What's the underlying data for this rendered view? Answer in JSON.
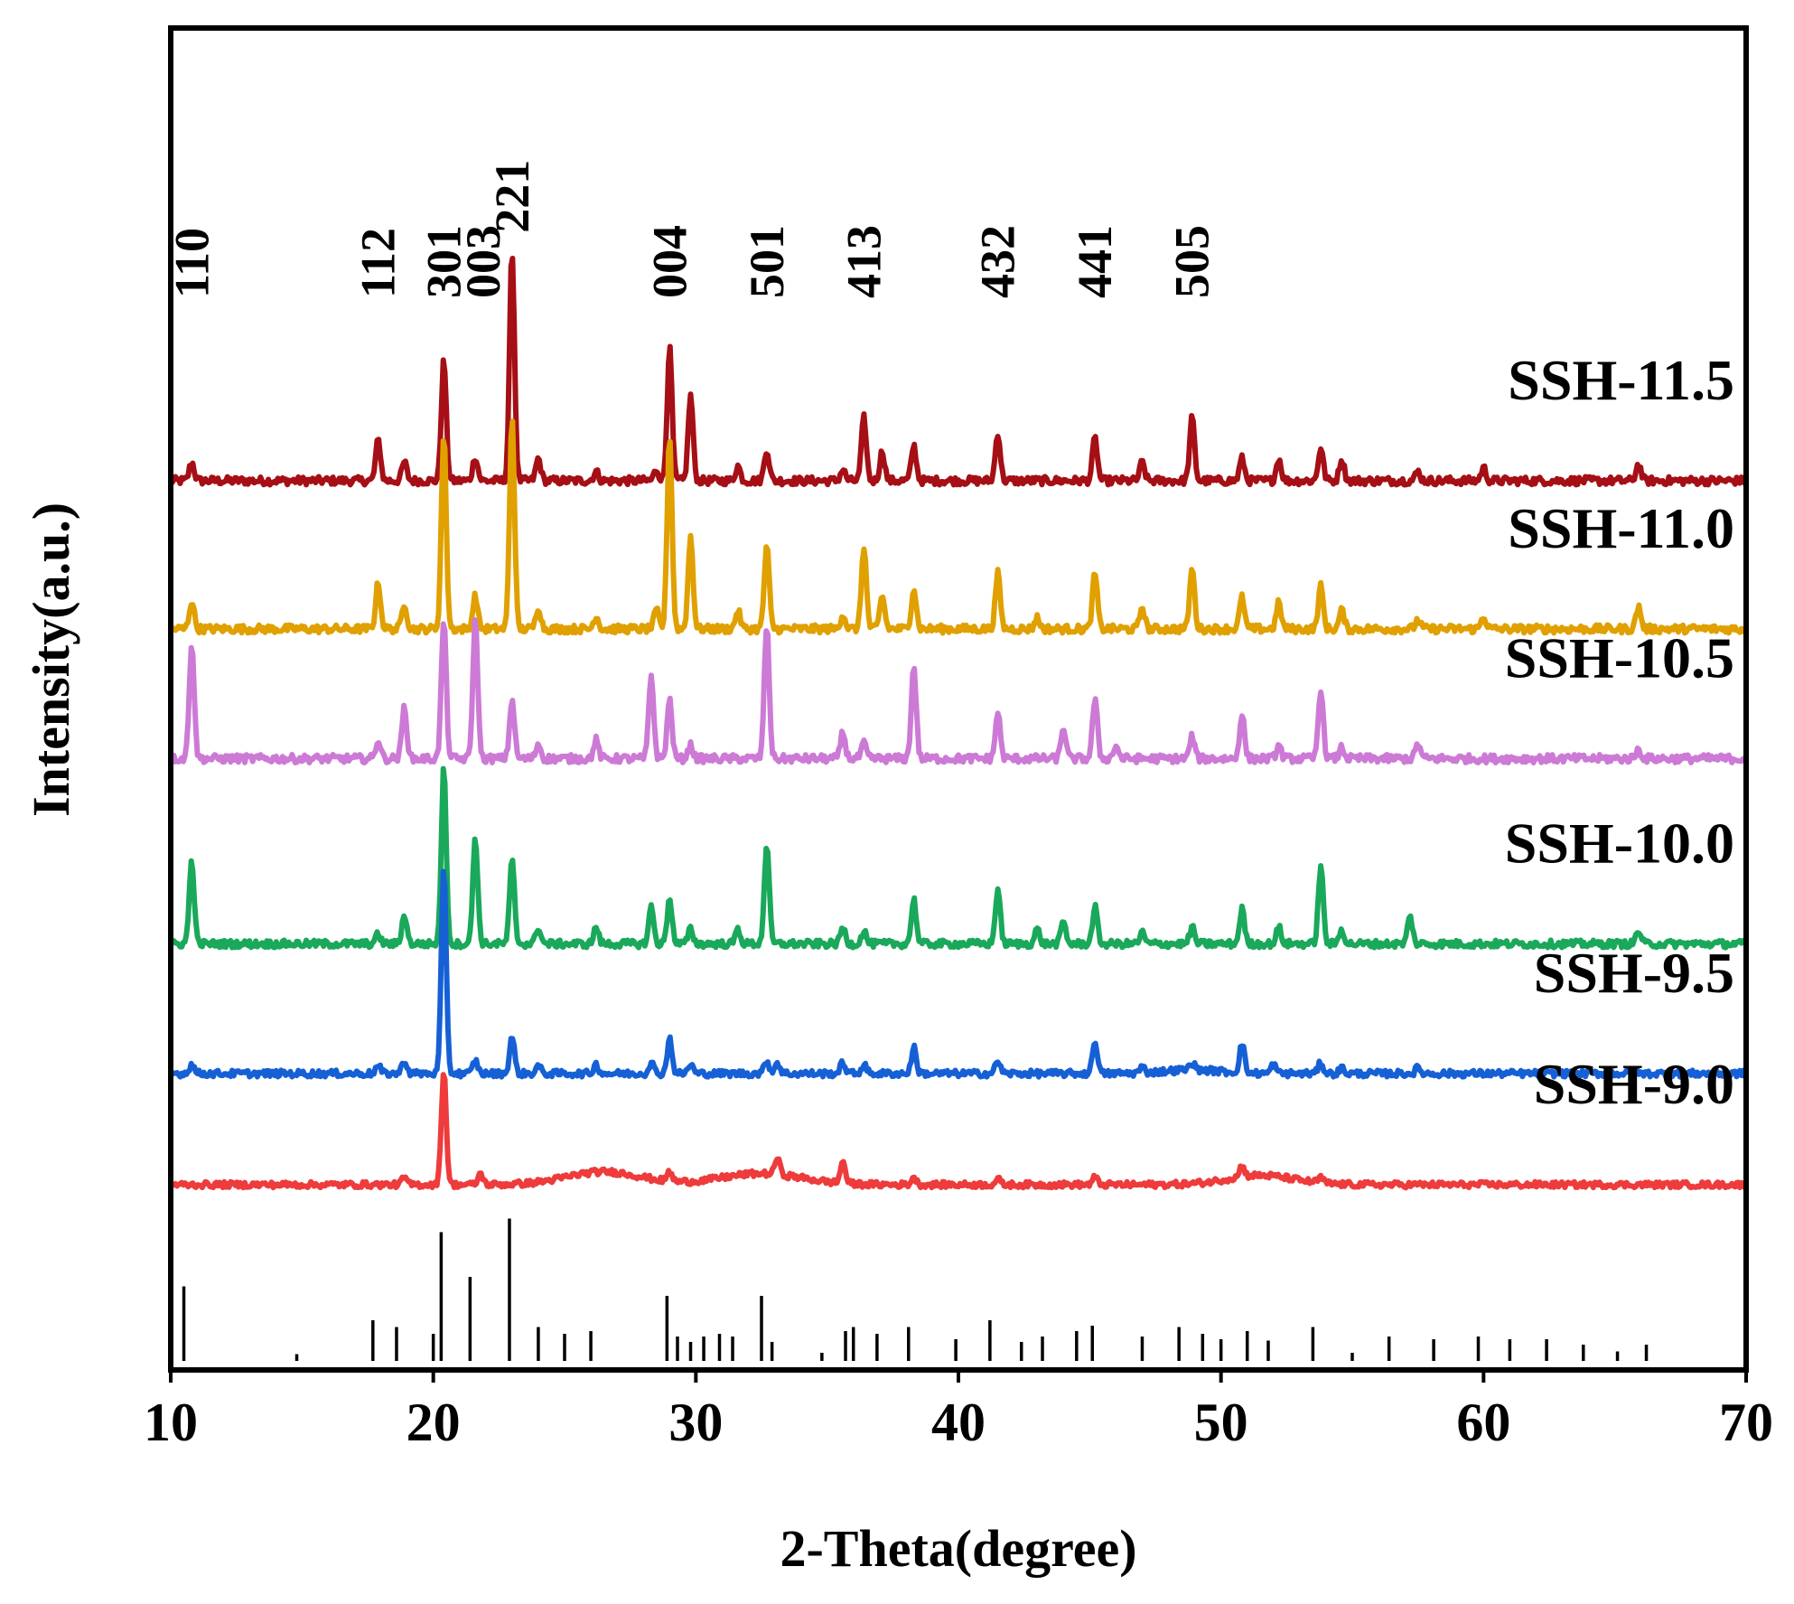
{
  "chart_data": {
    "type": "line",
    "title": "",
    "xlabel": "2-Theta(degree)",
    "ylabel": "Intensity(a.u.)",
    "xlim": [
      10,
      70
    ],
    "xticks": [
      "10",
      "20",
      "30",
      "40",
      "50",
      "60",
      "70"
    ],
    "xtick_values": [
      10,
      20,
      30,
      40,
      50,
      60,
      70
    ],
    "series": [
      {
        "name": "SSH-11.5",
        "color": "#a50f15",
        "offset": 4.8,
        "noise": 0.022,
        "peaks": [
          [
            10.8,
            0.1
          ],
          [
            17.9,
            0.22
          ],
          [
            18.9,
            0.1
          ],
          [
            20.4,
            0.65
          ],
          [
            21.6,
            0.13
          ],
          [
            23.0,
            1.25
          ],
          [
            24.0,
            0.12
          ],
          [
            26.2,
            0.05
          ],
          [
            28.5,
            0.06
          ],
          [
            29.0,
            0.72
          ],
          [
            29.8,
            0.46
          ],
          [
            31.6,
            0.08
          ],
          [
            32.7,
            0.17
          ],
          [
            35.6,
            0.06
          ],
          [
            36.4,
            0.34
          ],
          [
            37.1,
            0.16
          ],
          [
            38.3,
            0.19
          ],
          [
            41.5,
            0.26
          ],
          [
            45.2,
            0.23
          ],
          [
            47.0,
            0.1
          ],
          [
            48.9,
            0.34
          ],
          [
            50.8,
            0.12
          ],
          [
            52.2,
            0.12
          ],
          [
            53.8,
            0.18
          ],
          [
            54.6,
            0.12
          ],
          [
            57.5,
            0.05
          ],
          [
            60.0,
            0.07
          ],
          [
            65.9,
            0.09
          ]
        ],
        "humps": []
      },
      {
        "name": "SSH-11.0",
        "color": "#e0a000",
        "offset": 4.0,
        "noise": 0.022,
        "peaks": [
          [
            10.8,
            0.15
          ],
          [
            17.9,
            0.25
          ],
          [
            18.9,
            0.14
          ],
          [
            20.4,
            1.05
          ],
          [
            21.6,
            0.18
          ],
          [
            23.0,
            1.15
          ],
          [
            24.0,
            0.12
          ],
          [
            26.2,
            0.07
          ],
          [
            28.5,
            0.1
          ],
          [
            29.0,
            1.05
          ],
          [
            29.8,
            0.5
          ],
          [
            31.6,
            0.1
          ],
          [
            32.7,
            0.45
          ],
          [
            35.6,
            0.08
          ],
          [
            36.4,
            0.45
          ],
          [
            37.1,
            0.18
          ],
          [
            38.3,
            0.22
          ],
          [
            41.5,
            0.3
          ],
          [
            43.0,
            0.06
          ],
          [
            45.2,
            0.3
          ],
          [
            47.0,
            0.12
          ],
          [
            48.9,
            0.33
          ],
          [
            50.8,
            0.17
          ],
          [
            52.2,
            0.14
          ],
          [
            53.8,
            0.23
          ],
          [
            54.6,
            0.1
          ],
          [
            57.5,
            0.05
          ],
          [
            60.0,
            0.07
          ],
          [
            65.9,
            0.12
          ]
        ],
        "humps": []
      },
      {
        "name": "SSH-10.5",
        "color": "#cc7ad6",
        "offset": 3.3,
        "noise": 0.022,
        "peaks": [
          [
            10.8,
            0.63
          ],
          [
            17.9,
            0.1
          ],
          [
            18.9,
            0.28
          ],
          [
            20.4,
            0.75
          ],
          [
            21.6,
            0.75
          ],
          [
            23.0,
            0.32
          ],
          [
            24.0,
            0.08
          ],
          [
            26.2,
            0.1
          ],
          [
            28.3,
            0.45
          ],
          [
            29.0,
            0.32
          ],
          [
            29.8,
            0.07
          ],
          [
            32.7,
            0.72
          ],
          [
            35.6,
            0.14
          ],
          [
            36.4,
            0.08
          ],
          [
            38.3,
            0.5
          ],
          [
            41.5,
            0.25
          ],
          [
            44.0,
            0.17
          ],
          [
            45.2,
            0.32
          ],
          [
            46.0,
            0.07
          ],
          [
            48.9,
            0.12
          ],
          [
            50.8,
            0.24
          ],
          [
            52.2,
            0.07
          ],
          [
            53.8,
            0.38
          ],
          [
            54.6,
            0.06
          ],
          [
            57.5,
            0.08
          ],
          [
            65.9,
            0.05
          ]
        ],
        "humps": []
      },
      {
        "name": "SSH-10.0",
        "color": "#1aa85a",
        "offset": 2.3,
        "noise": 0.02,
        "peaks": [
          [
            10.8,
            0.45
          ],
          [
            17.9,
            0.05
          ],
          [
            18.9,
            0.16
          ],
          [
            20.4,
            0.95
          ],
          [
            21.6,
            0.58
          ],
          [
            23.0,
            0.45
          ],
          [
            24.0,
            0.09
          ],
          [
            26.2,
            0.09
          ],
          [
            28.3,
            0.2
          ],
          [
            29.0,
            0.25
          ],
          [
            29.8,
            0.08
          ],
          [
            31.6,
            0.08
          ],
          [
            32.7,
            0.54
          ],
          [
            35.6,
            0.09
          ],
          [
            36.4,
            0.07
          ],
          [
            38.3,
            0.24
          ],
          [
            41.5,
            0.3
          ],
          [
            43.0,
            0.08
          ],
          [
            44.0,
            0.12
          ],
          [
            45.2,
            0.2
          ],
          [
            47.0,
            0.06
          ],
          [
            48.9,
            0.09
          ],
          [
            50.8,
            0.19
          ],
          [
            52.2,
            0.09
          ],
          [
            53.8,
            0.42
          ],
          [
            54.6,
            0.08
          ],
          [
            57.2,
            0.15
          ],
          [
            65.9,
            0.07
          ]
        ],
        "humps": []
      },
      {
        "name": "SSH-9.5",
        "color": "#1660d6",
        "offset": 1.6,
        "noise": 0.018,
        "peaks": [
          [
            10.8,
            0.05
          ],
          [
            17.9,
            0.04
          ],
          [
            18.9,
            0.07
          ],
          [
            20.4,
            1.1
          ],
          [
            21.6,
            0.07
          ],
          [
            23.0,
            0.2
          ],
          [
            24.0,
            0.04
          ],
          [
            26.2,
            0.05
          ],
          [
            28.3,
            0.06
          ],
          [
            29.0,
            0.19
          ],
          [
            29.8,
            0.05
          ],
          [
            32.7,
            0.07
          ],
          [
            33.1,
            0.06
          ],
          [
            35.6,
            0.06
          ],
          [
            36.4,
            0.05
          ],
          [
            38.3,
            0.14
          ],
          [
            41.5,
            0.07
          ],
          [
            45.2,
            0.18
          ],
          [
            47.0,
            0.03
          ],
          [
            48.9,
            0.04
          ],
          [
            50.8,
            0.16
          ],
          [
            52.0,
            0.05
          ],
          [
            53.8,
            0.06
          ],
          [
            54.6,
            0.03
          ],
          [
            57.5,
            0.03
          ]
        ],
        "humps": [
          [
            48.9,
            1.5,
            0.02
          ]
        ]
      },
      {
        "name": "SSH-9.0",
        "color": "#ee3b3b",
        "offset": 1.0,
        "noise": 0.016,
        "peaks": [
          [
            18.9,
            0.04
          ],
          [
            20.4,
            0.62
          ],
          [
            21.8,
            0.06
          ],
          [
            29.0,
            0.05
          ],
          [
            33.1,
            0.09
          ],
          [
            35.6,
            0.12
          ],
          [
            38.3,
            0.04
          ],
          [
            41.5,
            0.03
          ],
          [
            45.2,
            0.04
          ],
          [
            50.8,
            0.06
          ],
          [
            53.8,
            0.03
          ]
        ],
        "humps": [
          [
            26.5,
            2.0,
            0.07
          ],
          [
            32.5,
            2.2,
            0.06
          ],
          [
            51.5,
            1.8,
            0.05
          ]
        ]
      }
    ],
    "reference_pattern": [
      [
        10.5,
        0.55
      ],
      [
        14.8,
        0.05
      ],
      [
        17.7,
        0.3
      ],
      [
        18.6,
        0.25
      ],
      [
        20.0,
        0.2
      ],
      [
        20.3,
        0.95
      ],
      [
        21.4,
        0.62
      ],
      [
        22.9,
        1.05
      ],
      [
        24.0,
        0.25
      ],
      [
        25.0,
        0.2
      ],
      [
        26.0,
        0.22
      ],
      [
        28.9,
        0.48
      ],
      [
        29.3,
        0.18
      ],
      [
        29.8,
        0.14
      ],
      [
        30.3,
        0.18
      ],
      [
        30.9,
        0.2
      ],
      [
        31.4,
        0.18
      ],
      [
        32.5,
        0.48
      ],
      [
        32.9,
        0.14
      ],
      [
        34.8,
        0.06
      ],
      [
        35.7,
        0.22
      ],
      [
        36.0,
        0.25
      ],
      [
        36.9,
        0.2
      ],
      [
        38.1,
        0.25
      ],
      [
        39.9,
        0.16
      ],
      [
        41.2,
        0.3
      ],
      [
        42.4,
        0.14
      ],
      [
        43.2,
        0.18
      ],
      [
        44.5,
        0.22
      ],
      [
        45.1,
        0.26
      ],
      [
        47.0,
        0.18
      ],
      [
        48.4,
        0.25
      ],
      [
        49.3,
        0.2
      ],
      [
        50.0,
        0.16
      ],
      [
        51.0,
        0.22
      ],
      [
        51.8,
        0.15
      ],
      [
        53.5,
        0.25
      ],
      [
        55.0,
        0.06
      ],
      [
        56.4,
        0.18
      ],
      [
        58.1,
        0.16
      ],
      [
        59.8,
        0.18
      ],
      [
        61.0,
        0.16
      ],
      [
        62.4,
        0.16
      ],
      [
        63.8,
        0.12
      ],
      [
        65.1,
        0.07
      ],
      [
        66.2,
        0.12
      ]
    ],
    "peak_labels": [
      {
        "text": "110",
        "x": 10.8
      },
      {
        "text": "112",
        "x": 17.9
      },
      {
        "text": "301",
        "x": 20.4
      },
      {
        "text": "003",
        "x": 21.9
      },
      {
        "text": "221",
        "x": 23.0
      },
      {
        "text": "004",
        "x": 29.0
      },
      {
        "text": "501",
        "x": 32.7
      },
      {
        "text": "413",
        "x": 36.4
      },
      {
        "text": "432",
        "x": 41.5
      },
      {
        "text": "441",
        "x": 45.2
      },
      {
        "text": "505",
        "x": 48.9
      }
    ],
    "grid": false,
    "legend": "inline labels at right of each trace"
  }
}
